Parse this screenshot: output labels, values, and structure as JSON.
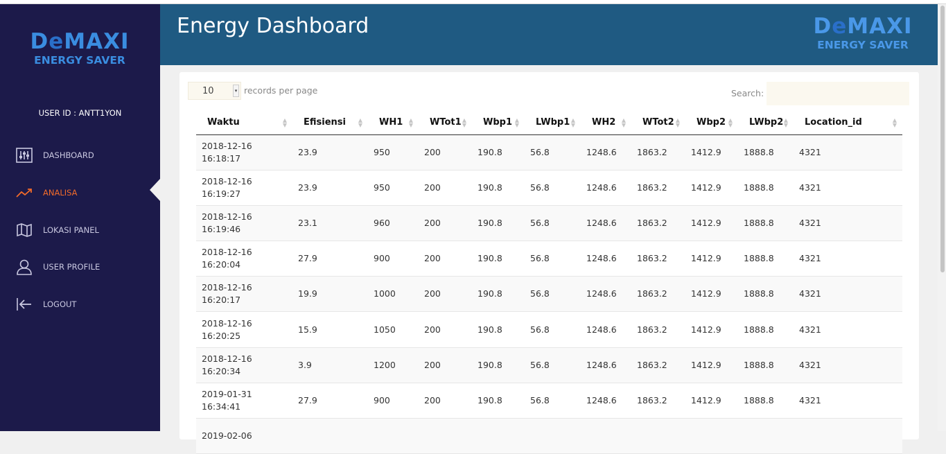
{
  "app": {
    "title": "Energy Dashboard"
  },
  "brand": {
    "name_pre": "D",
    "name_e": "e",
    "name_post": "MAXI",
    "tagline": "ENERGY SAVER"
  },
  "user": {
    "label": "USER ID : ANTT1YON"
  },
  "menu": [
    {
      "label": "DASHBOARD",
      "icon": "sliders-icon",
      "active": false
    },
    {
      "label": "ANALISA",
      "icon": "trend-up-icon",
      "active": true
    },
    {
      "label": "LOKASI PANEL",
      "icon": "map-icon",
      "active": false
    },
    {
      "label": "USER PROFILE",
      "icon": "user-icon",
      "active": false
    },
    {
      "label": "LOGOUT",
      "icon": "logout-icon",
      "active": false
    }
  ],
  "table_controls": {
    "page_length": "10",
    "length_label": "records per page",
    "search_label": "Search:",
    "search_value": ""
  },
  "table": {
    "columns": [
      "Waktu",
      "Efisiensi",
      "WH1",
      "WTot1",
      "Wbp1",
      "LWbp1",
      "WH2",
      "WTot2",
      "Wbp2",
      "LWbp2",
      "Location_id"
    ],
    "rows": [
      [
        "2018-12-16\n16:18:17",
        "23.9",
        "950",
        "200",
        "190.8",
        "56.8",
        "1248.6",
        "1863.2",
        "1412.9",
        "1888.8",
        "4321"
      ],
      [
        "2018-12-16\n16:19:27",
        "23.9",
        "950",
        "200",
        "190.8",
        "56.8",
        "1248.6",
        "1863.2",
        "1412.9",
        "1888.8",
        "4321"
      ],
      [
        "2018-12-16\n16:19:46",
        "23.1",
        "960",
        "200",
        "190.8",
        "56.8",
        "1248.6",
        "1863.2",
        "1412.9",
        "1888.8",
        "4321"
      ],
      [
        "2018-12-16\n16:20:04",
        "27.9",
        "900",
        "200",
        "190.8",
        "56.8",
        "1248.6",
        "1863.2",
        "1412.9",
        "1888.8",
        "4321"
      ],
      [
        "2018-12-16\n16:20:17",
        "19.9",
        "1000",
        "200",
        "190.8",
        "56.8",
        "1248.6",
        "1863.2",
        "1412.9",
        "1888.8",
        "4321"
      ],
      [
        "2018-12-16\n16:20:25",
        "15.9",
        "1050",
        "200",
        "190.8",
        "56.8",
        "1248.6",
        "1863.2",
        "1412.9",
        "1888.8",
        "4321"
      ],
      [
        "2018-12-16\n16:20:34",
        "3.9",
        "1200",
        "200",
        "190.8",
        "56.8",
        "1248.6",
        "1863.2",
        "1412.9",
        "1888.8",
        "4321"
      ],
      [
        "2019-01-31\n16:34:41",
        "27.9",
        "900",
        "200",
        "190.8",
        "56.8",
        "1248.6",
        "1863.2",
        "1412.9",
        "1888.8",
        "4321"
      ],
      [
        "2019-02-06",
        "",
        "",
        "",
        "",
        "",
        "",
        "",
        "",
        "",
        ""
      ]
    ]
  },
  "colors": {
    "sidebar": "#1c1a4a",
    "header": "#1f5a82",
    "accent": "#f26b2a",
    "brand": "#3a8de0"
  }
}
